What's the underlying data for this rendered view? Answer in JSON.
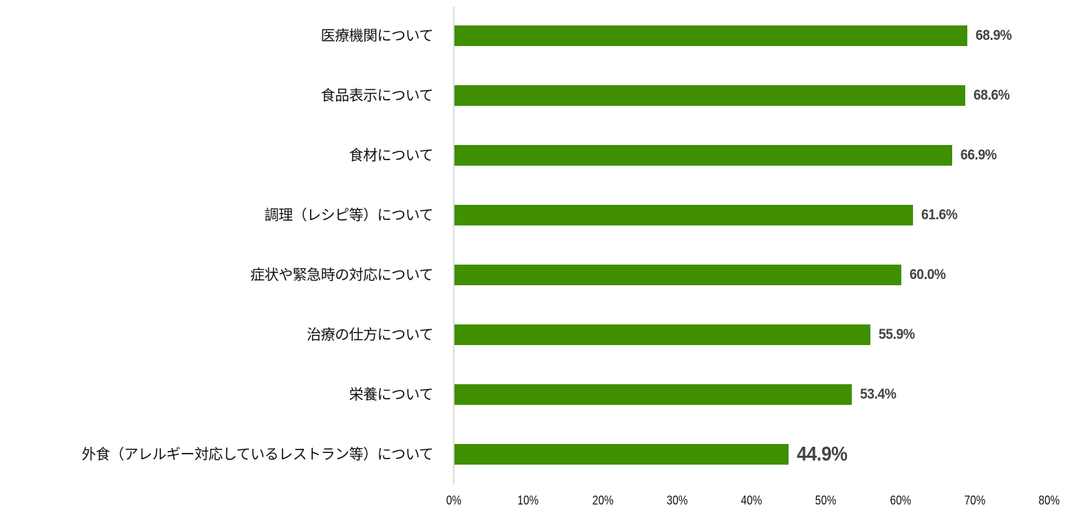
{
  "chart_data": {
    "type": "bar",
    "orientation": "horizontal",
    "title": "",
    "xlabel": "",
    "ylabel": "",
    "xlim": [
      0,
      80
    ],
    "grid": false,
    "bar_color": "#3f8f00",
    "categories": [
      "医療機関について",
      "食品表示について",
      "食材について",
      "調理（レシピ等）について",
      "症状や緊急時の対応について",
      "治療の仕方について",
      "栄養について",
      "外食（アレルギー対応しているレストラン等）について"
    ],
    "values": [
      68.9,
      68.6,
      66.9,
      61.6,
      60.0,
      55.9,
      53.4,
      44.9
    ],
    "value_labels": [
      "68.9%",
      "68.6%",
      "66.9%",
      "61.6%",
      "60.0%",
      "55.9%",
      "53.4%",
      "44.9%"
    ],
    "x_ticks": [
      "0%",
      "10%",
      "20%",
      "30%",
      "40%",
      "50%",
      "60%",
      "70%",
      "80%"
    ]
  }
}
